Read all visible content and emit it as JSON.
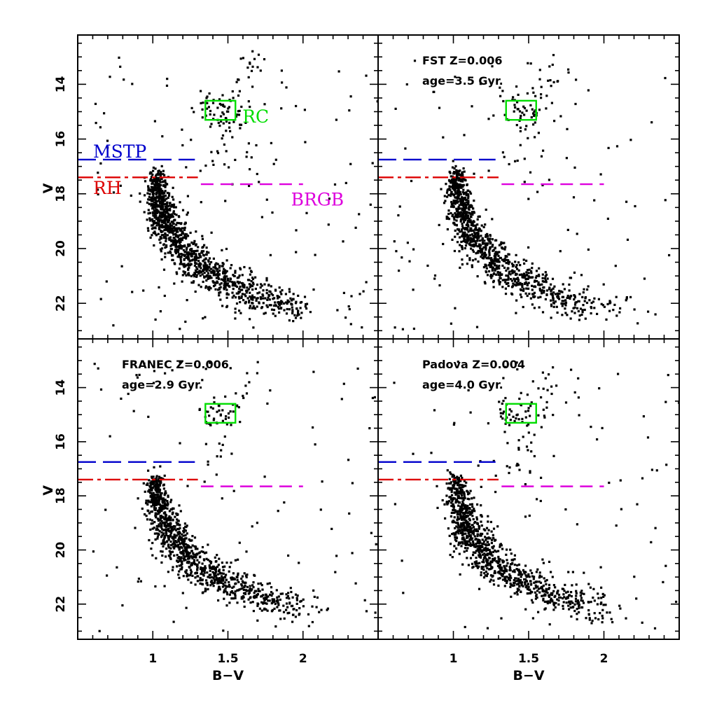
{
  "chart_data": [
    {
      "type": "scatter",
      "panel": "top-left",
      "title": "",
      "xlabel": "",
      "ylabel": "V",
      "xlim": [
        0.5,
        2.5
      ],
      "ylim": [
        23.3,
        12.2
      ],
      "x_ticks": [
        1,
        1.5,
        2
      ],
      "x_tick_labels": [
        "",
        "",
        ""
      ],
      "y_ticks": [
        14,
        16,
        18,
        20,
        22
      ],
      "y_tick_labels": [
        "14",
        "16",
        "18",
        "20",
        "22"
      ],
      "annotations": [],
      "reference_lines": [
        {
          "name": "MSTP",
          "label": "MSTP",
          "color": "#0000cc",
          "style": "long-dash",
          "x": [
            0.5,
            1.28
          ],
          "y": 16.75
        },
        {
          "name": "RH",
          "label": "RH",
          "color": "#dd0000",
          "style": "dash-dot",
          "x": [
            0.5,
            1.3
          ],
          "y": 17.4
        },
        {
          "name": "BRGB",
          "label": "BRGB",
          "color": "#dd00dd",
          "style": "dash",
          "x": [
            1.32,
            2.0
          ],
          "y": 17.65
        }
      ],
      "rc_box": {
        "label": "RC",
        "color": "#00dd00",
        "x": [
          1.35,
          1.55
        ],
        "y": [
          14.6,
          15.3
        ]
      },
      "point_count": 1400,
      "seed": 11,
      "notes": [
        "Dense red giant branch from (1.02,17.5) curving to (1.85,22)",
        "Scatter of field stars across the diagram"
      ]
    },
    {
      "type": "scatter",
      "panel": "top-right",
      "title": "",
      "xlabel": "",
      "ylabel": "",
      "xlim": [
        0.5,
        2.5
      ],
      "ylim": [
        23.3,
        12.2
      ],
      "x_ticks": [
        1,
        1.5,
        2
      ],
      "x_tick_labels": [
        "",
        "",
        ""
      ],
      "y_ticks": [
        14,
        16,
        18,
        20,
        22
      ],
      "y_tick_labels": [
        "",
        "",
        "",
        "",
        ""
      ],
      "annotations": [
        "FST Z=0.006",
        "age=3.5 Gyr."
      ],
      "reference_lines": [
        {
          "name": "MSTP",
          "label": "",
          "color": "#0000cc",
          "style": "long-dash",
          "x": [
            0.5,
            1.28
          ],
          "y": 16.75
        },
        {
          "name": "RH",
          "label": "",
          "color": "#dd0000",
          "style": "dash-dot",
          "x": [
            0.5,
            1.3
          ],
          "y": 17.4
        },
        {
          "name": "BRGB",
          "label": "",
          "color": "#dd00dd",
          "style": "dash",
          "x": [
            1.32,
            2.0
          ],
          "y": 17.65
        }
      ],
      "rc_box": {
        "label": "",
        "color": "#00dd00",
        "x": [
          1.35,
          1.55
        ],
        "y": [
          14.6,
          15.3
        ]
      },
      "point_count": 1200,
      "seed": 23,
      "notes": []
    },
    {
      "type": "scatter",
      "panel": "bottom-left",
      "title": "",
      "xlabel": "B−V",
      "ylabel": "V",
      "xlim": [
        0.5,
        2.5
      ],
      "ylim": [
        23.3,
        12.2
      ],
      "x_ticks": [
        1,
        1.5,
        2
      ],
      "x_tick_labels": [
        "1",
        "1.5",
        "2"
      ],
      "y_ticks": [
        14,
        16,
        18,
        20,
        22
      ],
      "y_tick_labels": [
        "14",
        "16",
        "18",
        "20",
        "22"
      ],
      "annotations": [
        "FRANEC Z=0.006",
        "age=2.9 Gyr."
      ],
      "reference_lines": [
        {
          "name": "MSTP",
          "label": "",
          "color": "#0000cc",
          "style": "long-dash",
          "x": [
            0.5,
            1.28
          ],
          "y": 16.75
        },
        {
          "name": "RH",
          "label": "",
          "color": "#dd0000",
          "style": "dash-dot",
          "x": [
            0.5,
            1.3
          ],
          "y": 17.4
        },
        {
          "name": "BRGB",
          "label": "",
          "color": "#dd00dd",
          "style": "dash",
          "x": [
            1.32,
            2.0
          ],
          "y": 17.65
        }
      ],
      "rc_box": {
        "label": "",
        "color": "#00dd00",
        "x": [
          1.35,
          1.55
        ],
        "y": [
          14.6,
          15.3
        ]
      },
      "point_count": 1200,
      "seed": 37,
      "notes": []
    },
    {
      "type": "scatter",
      "panel": "bottom-right",
      "title": "",
      "xlabel": "B−V",
      "ylabel": "",
      "xlim": [
        0.5,
        2.5
      ],
      "ylim": [
        23.3,
        12.2
      ],
      "x_ticks": [
        1,
        1.5,
        2
      ],
      "x_tick_labels": [
        "1",
        "1.5",
        "2"
      ],
      "y_ticks": [
        14,
        16,
        18,
        20,
        22
      ],
      "y_tick_labels": [
        "",
        "",
        "",
        "",
        ""
      ],
      "annotations": [
        "Padova Z=0.004",
        "age=4.0 Gyr."
      ],
      "reference_lines": [
        {
          "name": "MSTP",
          "label": "",
          "color": "#0000cc",
          "style": "long-dash",
          "x": [
            0.5,
            1.28
          ],
          "y": 16.75
        },
        {
          "name": "RH",
          "label": "",
          "color": "#dd0000",
          "style": "dash-dot",
          "x": [
            0.5,
            1.3
          ],
          "y": 17.4
        },
        {
          "name": "BRGB",
          "label": "",
          "color": "#dd00dd",
          "style": "dash",
          "x": [
            1.32,
            2.0
          ],
          "y": 17.65
        }
      ],
      "rc_box": {
        "label": "",
        "color": "#00dd00",
        "x": [
          1.35,
          1.55
        ],
        "y": [
          14.6,
          15.3
        ]
      },
      "point_count": 1200,
      "seed": 51,
      "notes": []
    }
  ]
}
